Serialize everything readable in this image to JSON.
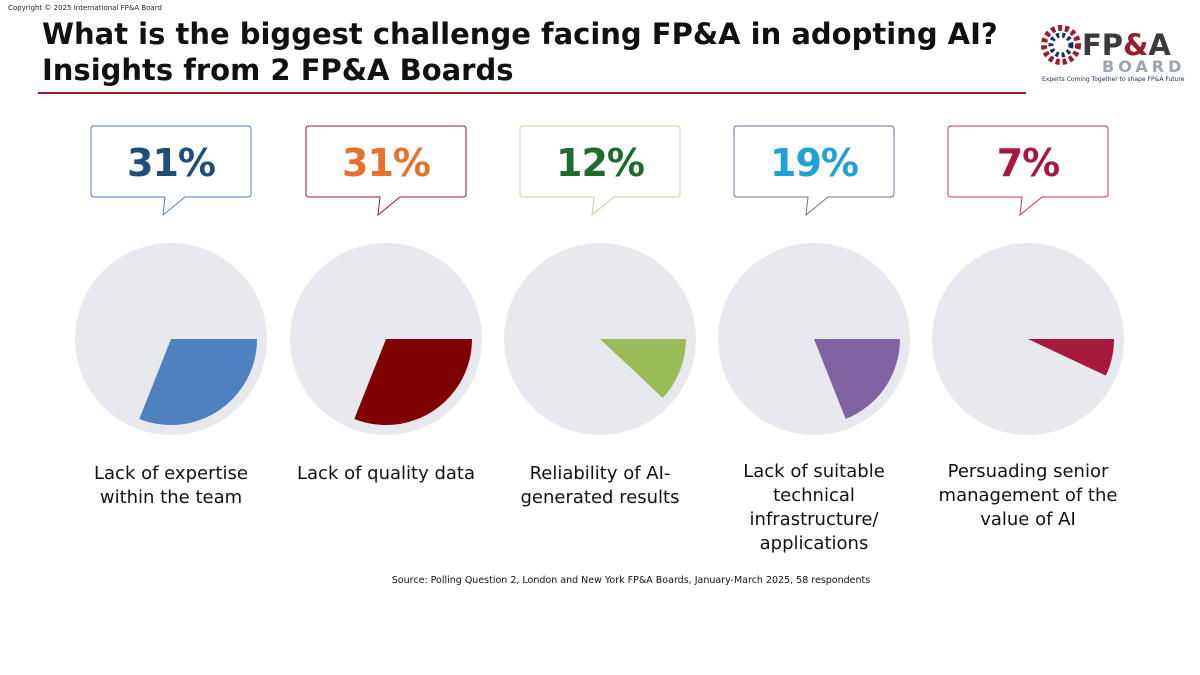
{
  "copyright": "Copyright © 2025 International FP&A Board",
  "title_line1": "What is the biggest challenge facing FP&A in adopting AI?",
  "title_line2": "Insights from 2 FP&A Boards",
  "logo": {
    "main": "FP",
    "amp": "&",
    "main_end": "A",
    "sub": "BOARD",
    "tagline": "Experts Coming Together to shape FP&A Future"
  },
  "source": "Source: Polling Question 2, London and New York FP&A Boards, January-March 2025, 58 respondents",
  "chart_data": {
    "type": "pie",
    "unit": "%",
    "items": [
      {
        "label": "Lack of expertise within the team",
        "value": 31,
        "display": "31%",
        "color": "#4f81c1",
        "text_color": "#1f4e79",
        "border_color": "#4f81c1"
      },
      {
        "label": "Lack of quality data",
        "value": 31,
        "display": "31%",
        "color": "#7f0000",
        "text_color": "#e8702a",
        "border_color": "#9a1c2e"
      },
      {
        "label": "Reliability of AI-generated results",
        "value": 12,
        "display": "12%",
        "color": "#9bbb59",
        "text_color": "#1e6b2e",
        "border_color": "#c3d69b"
      },
      {
        "label": "Lack of suitable technical infrastructure/ applications",
        "value": 19,
        "display": "19%",
        "color": "#8064a2",
        "text_color": "#1ea0d8",
        "border_color": "#8064a2"
      },
      {
        "label": "Persuading senior management of the value of AI",
        "value": 7,
        "display": "7%",
        "color": "#a6193c",
        "text_color": "#a6193c",
        "border_color": "#c0394f"
      }
    ]
  }
}
